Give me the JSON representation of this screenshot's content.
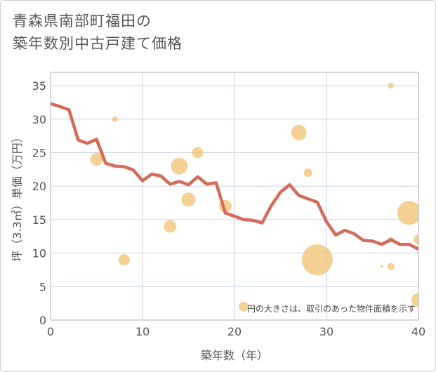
{
  "title_line1": "青森県南部町福田の",
  "title_line2": "築年数別中古戸建て価格",
  "colors": {
    "line": "#d46b5a",
    "bubble": "#f0c070",
    "grid": "#c8d4e3",
    "plot_border": "#b0b0b0"
  },
  "chart_data": {
    "type": "line",
    "xlabel": "築年数（年）",
    "ylabel": "坪（3.3㎡）単価（万円）",
    "xlim": [
      0,
      40
    ],
    "ylim": [
      0,
      37
    ],
    "x_ticks": [
      0,
      10,
      20,
      30,
      40
    ],
    "y_ticks": [
      0,
      5,
      10,
      15,
      20,
      25,
      30,
      35
    ],
    "grid": true,
    "note": "円の大きさは、取引のあった物件面積を示す",
    "series": [
      {
        "values": [
          [
            0,
            32.3
          ],
          [
            1,
            31.9
          ],
          [
            2,
            31.4
          ],
          [
            3,
            26.9
          ],
          [
            4,
            26.4
          ],
          [
            5,
            27.0
          ],
          [
            6,
            23.4
          ],
          [
            7,
            23.0
          ],
          [
            8,
            22.9
          ],
          [
            9,
            22.4
          ],
          [
            10,
            20.8
          ],
          [
            11,
            21.8
          ],
          [
            12,
            21.5
          ],
          [
            13,
            20.3
          ],
          [
            14,
            20.7
          ],
          [
            15,
            20.2
          ],
          [
            16,
            21.4
          ],
          [
            17,
            20.3
          ],
          [
            18,
            20.5
          ],
          [
            19,
            16.0
          ],
          [
            20,
            15.5
          ],
          [
            21,
            15.0
          ],
          [
            22,
            14.9
          ],
          [
            23,
            14.5
          ],
          [
            24,
            17.1
          ],
          [
            25,
            19.1
          ],
          [
            26,
            20.2
          ],
          [
            27,
            18.6
          ],
          [
            28,
            18.1
          ],
          [
            29,
            17.6
          ],
          [
            30,
            14.7
          ],
          [
            31,
            12.7
          ],
          [
            32,
            13.4
          ],
          [
            33,
            12.9
          ],
          [
            34,
            11.9
          ],
          [
            35,
            11.8
          ],
          [
            36,
            11.3
          ],
          [
            37,
            12.0
          ],
          [
            38,
            11.3
          ],
          [
            39,
            11.3
          ],
          [
            40,
            10.6
          ]
        ]
      }
    ],
    "bubbles": [
      {
        "x": 5,
        "y": 24,
        "size": 9
      },
      {
        "x": 7,
        "y": 30,
        "size": 4
      },
      {
        "x": 8,
        "y": 9,
        "size": 8
      },
      {
        "x": 13,
        "y": 14,
        "size": 9
      },
      {
        "x": 14,
        "y": 23,
        "size": 12
      },
      {
        "x": 15,
        "y": 18,
        "size": 10
      },
      {
        "x": 16,
        "y": 25,
        "size": 8
      },
      {
        "x": 19,
        "y": 17,
        "size": 9
      },
      {
        "x": 21,
        "y": 2,
        "size": 7
      },
      {
        "x": 27,
        "y": 28,
        "size": 11
      },
      {
        "x": 28,
        "y": 22,
        "size": 6
      },
      {
        "x": 29,
        "y": 9,
        "size": 22
      },
      {
        "x": 36,
        "y": 8,
        "size": 2
      },
      {
        "x": 37,
        "y": 35,
        "size": 4
      },
      {
        "x": 37,
        "y": 8,
        "size": 5
      },
      {
        "x": 37,
        "y": 12,
        "size": 4
      },
      {
        "x": 39,
        "y": 16,
        "size": 17
      },
      {
        "x": 40,
        "y": 12,
        "size": 7
      },
      {
        "x": 40,
        "y": 3,
        "size": 10
      }
    ]
  }
}
